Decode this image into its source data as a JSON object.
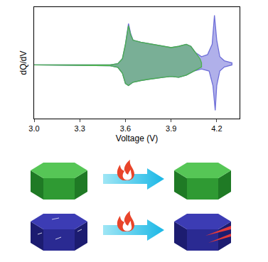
{
  "chart_data": {
    "type": "area",
    "x_label": "Voltage (V)",
    "y_label": "dQ/dV",
    "xlim": [
      3.0,
      4.35
    ],
    "xticks": [
      {
        "value": 3.0,
        "label": "3.0"
      },
      {
        "value": 3.3,
        "label": "3.3"
      },
      3.6,
      3.9,
      4.2
    ],
    "ylim": [
      -1.3,
      1.4
    ],
    "yticks": [],
    "tick_labels": "x",
    "series": [
      {
        "color": "#6f6fd8",
        "x": [
          3.0,
          3.5,
          3.55,
          3.58,
          3.6,
          3.62,
          3.635,
          3.65,
          3.7,
          3.75,
          3.8,
          3.85,
          3.9,
          3.95,
          4.0,
          4.03,
          4.06,
          4.1,
          4.14,
          4.17,
          4.185,
          4.2,
          4.22,
          4.25,
          4.3,
          4.3,
          4.25,
          4.22,
          4.2,
          4.19,
          4.175,
          4.15,
          4.1,
          4.05,
          4.0,
          3.95,
          3.9,
          3.85,
          3.8,
          3.75,
          3.7,
          3.65,
          3.62,
          3.6,
          3.58,
          3.55,
          3.5,
          3.3,
          3.0
        ],
        "values": [
          0,
          0,
          0.03,
          0.15,
          0.5,
          1.0,
          0.75,
          0.6,
          0.55,
          0.52,
          0.48,
          0.45,
          0.42,
          0.45,
          0.5,
          0.45,
          0.3,
          0.2,
          0.25,
          0.5,
          1.2,
          0.6,
          0.2,
          0.1,
          0.05,
          0,
          -0.05,
          -0.15,
          -0.5,
          -1.1,
          -0.5,
          -0.15,
          -0.1,
          -0.15,
          -0.25,
          -0.3,
          -0.28,
          -0.3,
          -0.32,
          -0.35,
          -0.38,
          -0.42,
          -0.5,
          -0.45,
          -0.2,
          -0.06,
          -0.02,
          -0.01,
          0
        ]
      },
      {
        "color": "#4caf50",
        "x": [
          3.0,
          3.5,
          3.55,
          3.58,
          3.6,
          3.62,
          3.635,
          3.65,
          3.7,
          3.75,
          3.8,
          3.85,
          3.9,
          3.95,
          4.0,
          4.03,
          4.06,
          4.09,
          4.1,
          4.1,
          4.05,
          4.0,
          3.95,
          3.9,
          3.85,
          3.8,
          3.75,
          3.7,
          3.65,
          3.62,
          3.6,
          3.58,
          3.55,
          3.5,
          3.3,
          3.0
        ],
        "values": [
          0,
          0,
          0.03,
          0.15,
          0.5,
          0.95,
          0.72,
          0.6,
          0.55,
          0.52,
          0.48,
          0.45,
          0.42,
          0.45,
          0.5,
          0.45,
          0.3,
          0.15,
          0.05,
          -0.05,
          -0.15,
          -0.25,
          -0.3,
          -0.28,
          -0.3,
          -0.32,
          -0.35,
          -0.38,
          -0.42,
          -0.5,
          -0.45,
          -0.2,
          -0.06,
          -0.02,
          -0.01,
          0
        ]
      }
    ]
  }
}
